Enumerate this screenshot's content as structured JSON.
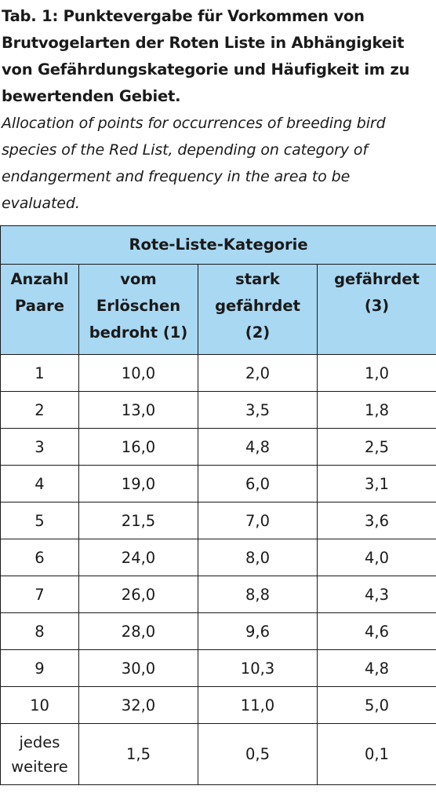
{
  "caption": {
    "title": "Tab. 1:  Punktevergabe für Vorkommen von\nBrutvogelarten der Roten Liste in Abhängigkeit\nvon Gefährdungskategorie und Häufigkeit im zu\nbewertenden Gebiet.",
    "translation": "Allocation of points for occurrences of breeding bird\nspecies of the Red List, depending on category of\nendangerment and frequency in the area to be\nevaluated."
  },
  "table": {
    "group_header": "Rote-Liste-Kategorie",
    "headers": [
      "Anzahl\nPaare",
      "vom\nErlöschen\nbedroht (1)",
      "stark\ngefährdet\n(2)",
      "gefährdet\n(3)"
    ],
    "rows": [
      [
        "1",
        "10,0",
        "2,0",
        "1,0"
      ],
      [
        "2",
        "13,0",
        "3,5",
        "1,8"
      ],
      [
        "3",
        "16,0",
        "4,8",
        "2,5"
      ],
      [
        "4",
        "19,0",
        "6,0",
        "3,1"
      ],
      [
        "5",
        "21,5",
        "7,0",
        "3,6"
      ],
      [
        "6",
        "24,0",
        "8,0",
        "4,0"
      ],
      [
        "7",
        "26,0",
        "8,8",
        "4,3"
      ],
      [
        "8",
        "28,0",
        "9,6",
        "4,6"
      ],
      [
        "9",
        "30,0",
        "10,3",
        "4,8"
      ],
      [
        "10",
        "32,0",
        "11,0",
        "5,0"
      ],
      [
        "jedes\nweitere",
        "1,5",
        "0,5",
        "0,1"
      ]
    ]
  }
}
